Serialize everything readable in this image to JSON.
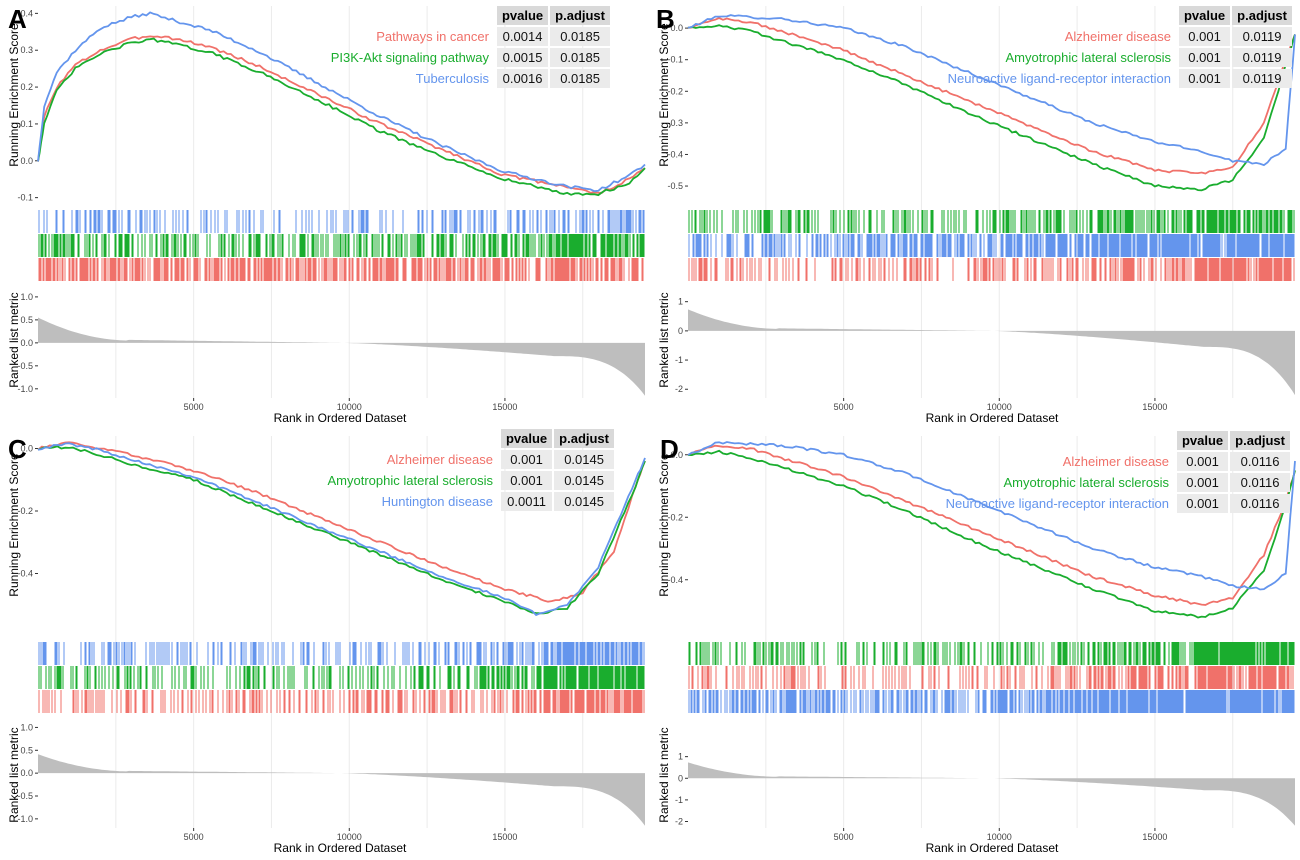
{
  "figure": {
    "colors": {
      "red": "#f0716a",
      "green": "#1aad2e",
      "blue": "#6495ed",
      "metric": "#bebebe",
      "grid": "#ebebeb"
    }
  },
  "chart_data": [
    {
      "type": "line",
      "label": "A",
      "xlabel": "Rank in Ordered Dataset",
      "ylabel_top": "Running Enrichment Score",
      "ylabel_bottom": "Ranked list metric",
      "xlim": [
        0,
        19500
      ],
      "x_ticks": [
        "5000",
        "10000",
        "15000"
      ],
      "ylim": [
        -0.12,
        0.42
      ],
      "y_ticks": [
        "-0.1",
        "0.0",
        "0.1",
        "0.2",
        "0.3",
        "0.4"
      ],
      "metric_ticks": [
        "1.0",
        "0.5",
        "0.0",
        "-0.5",
        "-1.0"
      ],
      "metric_range": [
        -1.2,
        1.15
      ],
      "metric_profile": {
        "start": 0.6,
        "end": -1.15
      },
      "table_headers": [
        "pvalue",
        "p.adjust"
      ],
      "series": [
        {
          "name": "Pathways in cancer",
          "color": "red",
          "pvalue": "0.0014",
          "padjust": "0.0185",
          "x": [
            0,
            200,
            600,
            1200,
            2000,
            3000,
            3600,
            4200,
            5500,
            7000,
            9000,
            11000,
            13000,
            15000,
            17000,
            18000,
            19000,
            19500
          ],
          "y": [
            0.0,
            0.12,
            0.2,
            0.26,
            0.3,
            0.33,
            0.34,
            0.335,
            0.31,
            0.26,
            0.18,
            0.1,
            0.03,
            -0.04,
            -0.07,
            -0.09,
            -0.05,
            -0.02
          ]
        },
        {
          "name": "PI3K-Akt signaling pathway",
          "color": "green",
          "pvalue": "0.0015",
          "padjust": "0.0185",
          "x": [
            0,
            200,
            600,
            1200,
            2000,
            3000,
            3600,
            4200,
            5500,
            7000,
            9000,
            11000,
            13000,
            15000,
            17000,
            18000,
            19000,
            19500
          ],
          "y": [
            0.0,
            0.1,
            0.19,
            0.25,
            0.29,
            0.32,
            0.33,
            0.32,
            0.295,
            0.245,
            0.165,
            0.08,
            0.01,
            -0.05,
            -0.09,
            -0.09,
            -0.06,
            -0.02
          ]
        },
        {
          "name": "Tuberculosis",
          "color": "blue",
          "pvalue": "0.0016",
          "padjust": "0.0185",
          "x": [
            0,
            200,
            600,
            1200,
            2000,
            3000,
            3600,
            4200,
            5500,
            7000,
            9000,
            11000,
            13000,
            15000,
            17000,
            18000,
            19000,
            19500
          ],
          "y": [
            0.0,
            0.15,
            0.24,
            0.3,
            0.36,
            0.39,
            0.4,
            0.385,
            0.355,
            0.3,
            0.21,
            0.12,
            0.04,
            -0.03,
            -0.07,
            -0.08,
            -0.04,
            -0.01
          ]
        }
      ],
      "hit_rows": [
        {
          "color": "blue",
          "density": [
            0.35,
            0.3,
            0.25,
            0.2,
            0.3,
            0.45
          ]
        },
        {
          "color": "green",
          "density": [
            0.55,
            0.5,
            0.45,
            0.45,
            0.5,
            0.6
          ]
        },
        {
          "color": "red",
          "density": [
            0.7,
            0.65,
            0.6,
            0.6,
            0.65,
            0.7
          ]
        }
      ]
    },
    {
      "type": "line",
      "label": "B",
      "xlabel": "Rank in Ordered Dataset",
      "ylabel_top": "Running Enrichment Score",
      "ylabel_bottom": "Ranked list metric",
      "xlim": [
        0,
        19500
      ],
      "x_ticks": [
        "5000",
        "10000",
        "15000"
      ],
      "ylim": [
        -0.56,
        0.07
      ],
      "y_ticks": [
        "-0.5",
        "-0.4",
        "-0.3",
        "-0.2",
        "-0.1",
        "0.0"
      ],
      "metric_ticks": [
        "1",
        "0",
        "-1",
        "-2"
      ],
      "metric_range": [
        -2.3,
        1.4
      ],
      "metric_profile": {
        "start": 0.8,
        "end": -2.2
      },
      "table_headers": [
        "pvalue",
        "p.adjust"
      ],
      "series": [
        {
          "name": "Alzheimer disease",
          "color": "red",
          "pvalue": "0.001",
          "padjust": "0.0119",
          "x": [
            0,
            1000,
            2000,
            3000,
            5000,
            7000,
            9000,
            11000,
            13000,
            15000,
            16500,
            17500,
            18500,
            19200,
            19500
          ],
          "y": [
            0.0,
            0.03,
            0.02,
            -0.01,
            -0.07,
            -0.15,
            -0.23,
            -0.31,
            -0.39,
            -0.45,
            -0.46,
            -0.44,
            -0.3,
            -0.1,
            -0.02
          ]
        },
        {
          "name": "Amyotrophic lateral sclerosis",
          "color": "green",
          "pvalue": "0.001",
          "padjust": "0.0119",
          "x": [
            0,
            1000,
            2000,
            3000,
            5000,
            7000,
            9000,
            11000,
            13000,
            15000,
            16500,
            17500,
            18500,
            19200,
            19500
          ],
          "y": [
            0.0,
            0.01,
            -0.01,
            -0.04,
            -0.1,
            -0.18,
            -0.27,
            -0.35,
            -0.43,
            -0.5,
            -0.51,
            -0.48,
            -0.35,
            -0.12,
            -0.02
          ]
        },
        {
          "name": "Neuroactive ligand-receptor interaction",
          "color": "blue",
          "pvalue": "0.001",
          "padjust": "0.0119",
          "x": [
            0,
            1000,
            2000,
            3000,
            5000,
            7000,
            9000,
            11000,
            13000,
            15000,
            16500,
            17500,
            18500,
            19200,
            19500
          ],
          "y": [
            0.0,
            0.04,
            0.035,
            0.03,
            0.0,
            -0.06,
            -0.14,
            -0.22,
            -0.3,
            -0.36,
            -0.39,
            -0.42,
            -0.43,
            -0.38,
            -0.02
          ]
        }
      ],
      "hit_rows": [
        {
          "color": "green",
          "density": [
            0.35,
            0.3,
            0.35,
            0.45,
            0.6,
            0.85
          ]
        },
        {
          "color": "blue",
          "density": [
            0.5,
            0.5,
            0.6,
            0.75,
            0.9,
            0.9
          ]
        },
        {
          "color": "red",
          "density": [
            0.35,
            0.25,
            0.3,
            0.4,
            0.55,
            0.8
          ]
        }
      ]
    },
    {
      "type": "line",
      "label": "C",
      "xlabel": "Rank in Ordered Dataset",
      "ylabel_top": "Running Enrichment Score",
      "ylabel_bottom": "Ranked list metric",
      "xlim": [
        0,
        19500
      ],
      "x_ticks": [
        "5000",
        "10000",
        "15000"
      ],
      "ylim": [
        -0.6,
        0.04
      ],
      "y_ticks": [
        "-0.4",
        "-0.2",
        "0.0"
      ],
      "metric_ticks": [
        "1.0",
        "0.5",
        "0.0",
        "-0.5",
        "-1.0"
      ],
      "metric_range": [
        -1.2,
        0.55
      ],
      "metric_profile": {
        "start": 0.45,
        "end": -1.15
      },
      "table_headers": [
        "pvalue",
        "p.adjust"
      ],
      "series": [
        {
          "name": "Alzheimer disease",
          "color": "red",
          "pvalue": "0.001",
          "padjust": "0.0145",
          "x": [
            0,
            1000,
            2000,
            3000,
            5000,
            7000,
            9000,
            11000,
            13000,
            15000,
            16500,
            17500,
            18500,
            19200,
            19500
          ],
          "y": [
            0.0,
            0.02,
            0.0,
            -0.02,
            -0.07,
            -0.14,
            -0.22,
            -0.3,
            -0.38,
            -0.45,
            -0.49,
            -0.46,
            -0.33,
            -0.12,
            -0.04
          ]
        },
        {
          "name": "Amyotrophic lateral sclerosis",
          "color": "green",
          "pvalue": "0.001",
          "padjust": "0.0145",
          "x": [
            0,
            1000,
            2000,
            3000,
            5000,
            7000,
            9000,
            11000,
            13000,
            15000,
            16000,
            17000,
            18000,
            19200,
            19500
          ],
          "y": [
            0.0,
            0.005,
            -0.02,
            -0.05,
            -0.1,
            -0.18,
            -0.26,
            -0.34,
            -0.42,
            -0.49,
            -0.53,
            -0.51,
            -0.4,
            -0.12,
            -0.04
          ]
        },
        {
          "name": "Huntington disease",
          "color": "blue",
          "pvalue": "0.0011",
          "padjust": "0.0145",
          "x": [
            0,
            1000,
            2000,
            3000,
            5000,
            7000,
            9000,
            11000,
            13000,
            15000,
            16000,
            17000,
            18000,
            19200,
            19500
          ],
          "y": [
            0.0,
            0.015,
            -0.005,
            -0.035,
            -0.09,
            -0.17,
            -0.25,
            -0.33,
            -0.41,
            -0.48,
            -0.53,
            -0.5,
            -0.38,
            -0.1,
            -0.03
          ]
        }
      ],
      "hit_rows": [
        {
          "color": "blue",
          "density": [
            0.35,
            0.3,
            0.3,
            0.3,
            0.45,
            0.85
          ]
        },
        {
          "color": "green",
          "density": [
            0.35,
            0.3,
            0.3,
            0.35,
            0.5,
            0.85
          ]
        },
        {
          "color": "red",
          "density": [
            0.4,
            0.35,
            0.35,
            0.4,
            0.55,
            0.85
          ]
        }
      ]
    },
    {
      "type": "line",
      "label": "D",
      "xlabel": "Rank in Ordered Dataset",
      "ylabel_top": "Running Enrichment Score",
      "ylabel_bottom": "Ranked list metric",
      "xlim": [
        0,
        19500
      ],
      "x_ticks": [
        "5000",
        "10000",
        "15000"
      ],
      "ylim": [
        -0.58,
        0.06
      ],
      "y_ticks": [
        "-0.4",
        "-0.2",
        "0.0"
      ],
      "metric_ticks": [
        "1",
        "0",
        "-1",
        "-2"
      ],
      "metric_range": [
        -2.3,
        1.4
      ],
      "metric_profile": {
        "start": 0.8,
        "end": -2.2
      },
      "table_headers": [
        "pvalue",
        "p.adjust"
      ],
      "series": [
        {
          "name": "Alzheimer disease",
          "color": "red",
          "pvalue": "0.001",
          "padjust": "0.0116",
          "x": [
            0,
            1000,
            2000,
            3000,
            5000,
            7000,
            9000,
            11000,
            13000,
            15000,
            16500,
            17500,
            18500,
            19200,
            19500
          ],
          "y": [
            0.0,
            0.03,
            0.02,
            -0.01,
            -0.07,
            -0.15,
            -0.23,
            -0.31,
            -0.39,
            -0.45,
            -0.48,
            -0.46,
            -0.32,
            -0.15,
            -0.05
          ]
        },
        {
          "name": "Amyotrophic lateral sclerosis",
          "color": "green",
          "pvalue": "0.001",
          "padjust": "0.0116",
          "x": [
            0,
            1000,
            2000,
            3000,
            5000,
            7000,
            9000,
            11000,
            13000,
            15000,
            16500,
            17500,
            18500,
            19200,
            19500
          ],
          "y": [
            0.0,
            0.01,
            -0.01,
            -0.04,
            -0.1,
            -0.18,
            -0.27,
            -0.35,
            -0.43,
            -0.5,
            -0.52,
            -0.49,
            -0.37,
            -0.16,
            -0.05
          ]
        },
        {
          "name": "Neuroactive ligand-receptor interaction",
          "color": "blue",
          "pvalue": "0.001",
          "padjust": "0.0116",
          "x": [
            0,
            1000,
            2000,
            3000,
            5000,
            7000,
            9000,
            11000,
            13000,
            15000,
            16500,
            17500,
            18500,
            19200,
            19500
          ],
          "y": [
            0.0,
            0.04,
            0.035,
            0.03,
            0.0,
            -0.06,
            -0.14,
            -0.22,
            -0.3,
            -0.36,
            -0.39,
            -0.42,
            -0.43,
            -0.38,
            -0.02
          ]
        }
      ],
      "hit_rows": [
        {
          "color": "green",
          "density": [
            0.35,
            0.3,
            0.35,
            0.45,
            0.6,
            0.85
          ]
        },
        {
          "color": "red",
          "density": [
            0.35,
            0.25,
            0.3,
            0.4,
            0.55,
            0.8
          ]
        },
        {
          "color": "blue",
          "density": [
            0.5,
            0.5,
            0.6,
            0.75,
            0.9,
            0.9
          ]
        }
      ]
    }
  ]
}
